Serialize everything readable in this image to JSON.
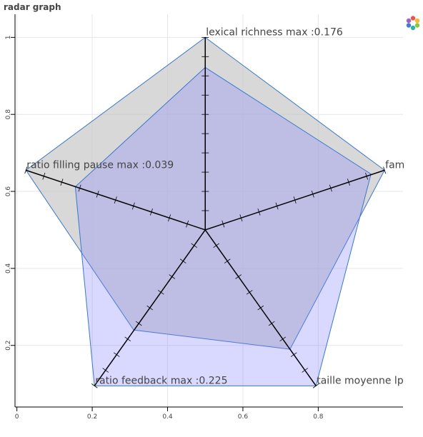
{
  "title": "radar graph",
  "toolbar": {
    "logo_icon": "bokeh-logo-icon"
  },
  "chart_data": {
    "type": "radar",
    "axis_ranges": {
      "x": [
        -0.005,
        1.025
      ],
      "y": [
        0.04,
        1.06
      ]
    },
    "grid": true,
    "x_ticks": [
      {
        "value": 0,
        "label": "0"
      },
      {
        "value": 0.2,
        "label": "0.2"
      },
      {
        "value": 0.4,
        "label": "0.4"
      },
      {
        "value": 0.6,
        "label": "0.6"
      },
      {
        "value": 0.8,
        "label": "0.8"
      }
    ],
    "y_ticks": [
      {
        "value": 0.2,
        "label": "0.2"
      },
      {
        "value": 0.4,
        "label": "0.4"
      },
      {
        "value": 0.6,
        "label": "0.6"
      },
      {
        "value": 0.8,
        "label": "0.8"
      },
      {
        "value": 1,
        "label": "1"
      }
    ],
    "center": [
      0.5,
      0.5
    ],
    "axes": [
      {
        "label": "lexical richness max :0.176",
        "end": [
          0.5,
          1.0
        ]
      },
      {
        "label": "fam",
        "end": [
          0.976,
          0.655
        ]
      },
      {
        "label": "taille moyenne lp",
        "end": [
          0.794,
          0.095
        ]
      },
      {
        "label": "ratio feedback max :0.225",
        "end": [
          0.206,
          0.095
        ]
      },
      {
        "label": "ratio filling pause max :0.039",
        "end": [
          0.024,
          0.655
        ]
      }
    ],
    "series": [
      {
        "color": "#c8c8c8",
        "points": [
          [
            0.5,
            1.0
          ],
          [
            0.976,
            0.655
          ],
          [
            0.725,
            0.19
          ],
          [
            0.31,
            0.24
          ],
          [
            0.024,
            0.655
          ]
        ]
      },
      {
        "color": "#8080ff",
        "points": [
          [
            0.5,
            0.922
          ],
          [
            0.94,
            0.645
          ],
          [
            0.794,
            0.095
          ],
          [
            0.206,
            0.095
          ],
          [
            0.155,
            0.612
          ]
        ]
      }
    ]
  }
}
